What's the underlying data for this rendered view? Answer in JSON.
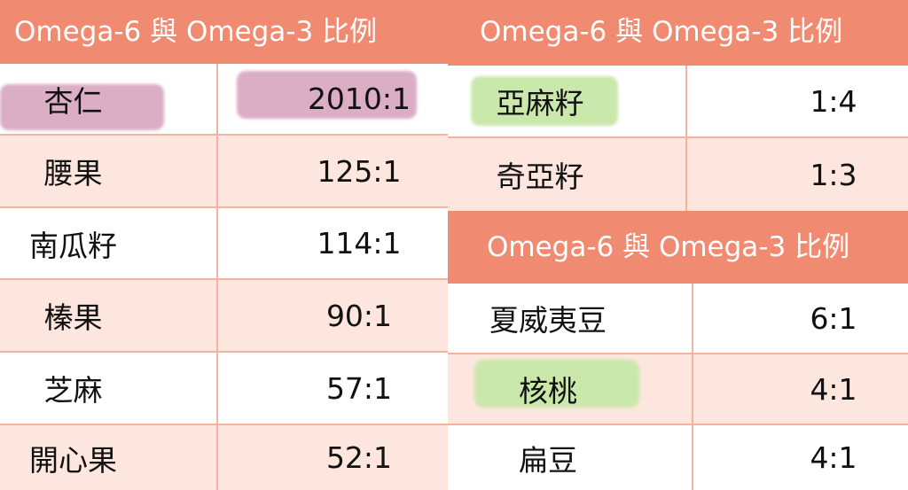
{
  "colors": {
    "header": "#F08A70",
    "row_alt": "#FDE6DE",
    "highlight_purple": "#DBAEC6",
    "highlight_green": "#CBE8AC"
  },
  "tables": [
    {
      "header": "Omega-6 與 Omega-3 比例",
      "rows": [
        {
          "name": "杏仁",
          "ratio": "2010:1",
          "highlight": "purple"
        },
        {
          "name": "腰果",
          "ratio": "125:1"
        },
        {
          "name": "南瓜籽",
          "ratio": "114:1"
        },
        {
          "name": "榛果",
          "ratio": "90:1"
        },
        {
          "name": "芝麻",
          "ratio": "57:1"
        },
        {
          "name": "開心果",
          "ratio": "52:1"
        }
      ]
    },
    {
      "header": "Omega-6 與 Omega-3 比例",
      "rows": [
        {
          "name": "亞麻籽",
          "ratio": "1:4",
          "highlight": "green"
        },
        {
          "name": "奇亞籽",
          "ratio": "1:3"
        }
      ]
    },
    {
      "header": "Omega-6 與 Omega-3 比例",
      "rows": [
        {
          "name": "夏威夷豆",
          "ratio": "6:1"
        },
        {
          "name": "核桃",
          "ratio": "4:1",
          "highlight": "green"
        },
        {
          "name": "扁豆",
          "ratio": "4:1"
        }
      ]
    }
  ]
}
